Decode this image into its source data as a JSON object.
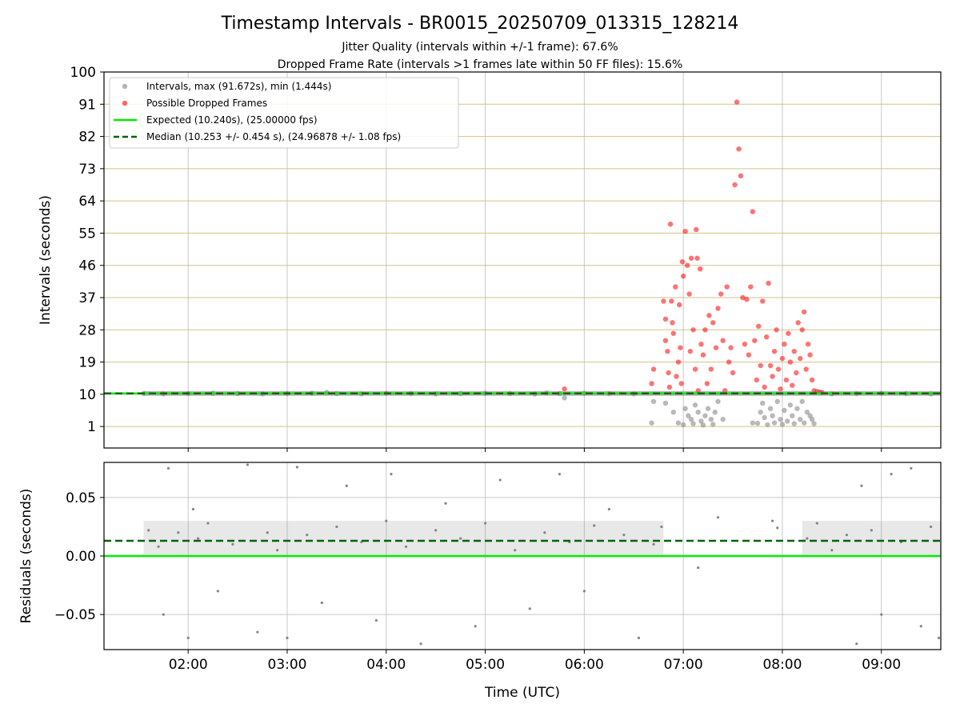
{
  "title": "Timestamp Intervals - BR0015_20250709_013315_128214",
  "subtitles": [
    "Jitter Quality (intervals within +/-1 frame): 67.6%",
    "Dropped Frame Rate (intervals >1 frames late within 50 FF files): 15.6%"
  ],
  "colors": {
    "intervals": "#808080",
    "dropped": "#ff0000",
    "expected": "#00ee00",
    "median": "#006400",
    "hgrid_top": "#d2c38a",
    "grid": "#c8c8c8"
  },
  "chart_data": [
    {
      "type": "scatter",
      "ylabel": "Intervals (seconds)",
      "xlabel": "",
      "xlim_hours": [
        1.15,
        9.6
      ],
      "ylim": [
        -5,
        100
      ],
      "yticks": [
        "1",
        "10",
        "19",
        "28",
        "37",
        "46",
        "55",
        "64",
        "73",
        "82",
        "91",
        "100"
      ],
      "xticks": [
        "02:00",
        "03:00",
        "04:00",
        "05:00",
        "06:00",
        "07:00",
        "08:00",
        "09:00"
      ],
      "legend": {
        "placement": "upper-left",
        "entries": [
          {
            "label": "Intervals, max (91.672s), min (1.444s)",
            "kind": "marker",
            "color": "#808080"
          },
          {
            "label": "Possible Dropped Frames",
            "kind": "marker",
            "color": "#ff0000"
          },
          {
            "label": "Expected (10.240s), (25.00000 fps)",
            "kind": "solid",
            "color": "#00ee00"
          },
          {
            "label": "Median (10.253 +/- 0.454 s), (24.96878 +/- 1.08 fps)",
            "kind": "dashed",
            "color": "#006400"
          }
        ]
      },
      "expected": 10.24,
      "median": 10.253,
      "series": [
        {
          "name": "Intervals, max (91.672s), min (1.444s)",
          "note": "dense band at ~10.24 s from 01:33 to 09:36; scattered low values 07:00-08:25",
          "points": [
            [
              1.55,
              10.2
            ],
            [
              1.75,
              10.1
            ],
            [
              2.0,
              10.2
            ],
            [
              2.25,
              10.3
            ],
            [
              2.5,
              10.2
            ],
            [
              2.75,
              10.1
            ],
            [
              3.0,
              10.2
            ],
            [
              3.25,
              10.3
            ],
            [
              3.4,
              10.5
            ],
            [
              3.5,
              10.2
            ],
            [
              3.75,
              10.1
            ],
            [
              4.0,
              10.3
            ],
            [
              4.25,
              10.2
            ],
            [
              4.5,
              10.1
            ],
            [
              4.75,
              10.2
            ],
            [
              5.0,
              10.3
            ],
            [
              5.25,
              10.2
            ],
            [
              5.5,
              10.1
            ],
            [
              5.62,
              10.4
            ],
            [
              5.8,
              9.0
            ],
            [
              5.75,
              10.2
            ],
            [
              6.0,
              10.3
            ],
            [
              6.25,
              10.2
            ],
            [
              6.5,
              10.1
            ],
            [
              6.68,
              2.0
            ],
            [
              6.7,
              8.0
            ],
            [
              6.82,
              7.5
            ],
            [
              6.9,
              5.0
            ],
            [
              6.95,
              2.0
            ],
            [
              7.0,
              1.5
            ],
            [
              7.02,
              6.0
            ],
            [
              7.05,
              4.0
            ],
            [
              7.08,
              3.0
            ],
            [
              7.1,
              1.8
            ],
            [
              7.12,
              7.0
            ],
            [
              7.15,
              5.0
            ],
            [
              7.18,
              2.5
            ],
            [
              7.2,
              1.4
            ],
            [
              7.22,
              4.0
            ],
            [
              7.25,
              6.0
            ],
            [
              7.28,
              3.0
            ],
            [
              7.3,
              1.6
            ],
            [
              7.32,
              5.0
            ],
            [
              7.35,
              8.0
            ],
            [
              7.4,
              3.0
            ],
            [
              7.7,
              2.0
            ],
            [
              7.75,
              1.9
            ],
            [
              7.78,
              5.0
            ],
            [
              7.8,
              7.5
            ],
            [
              7.82,
              3.5
            ],
            [
              7.85,
              1.5
            ],
            [
              7.88,
              6.0
            ],
            [
              7.9,
              4.0
            ],
            [
              7.92,
              2.0
            ],
            [
              7.95,
              8.0
            ],
            [
              7.98,
              3.0
            ],
            [
              8.0,
              1.6
            ],
            [
              8.02,
              5.5
            ],
            [
              8.05,
              2.5
            ],
            [
              8.08,
              7.0
            ],
            [
              8.1,
              4.0
            ],
            [
              8.12,
              1.8
            ],
            [
              8.15,
              6.0
            ],
            [
              8.18,
              3.0
            ],
            [
              8.2,
              8.0
            ],
            [
              8.22,
              2.0
            ],
            [
              8.25,
              5.0
            ],
            [
              8.28,
              4.0
            ],
            [
              8.3,
              3.0
            ],
            [
              8.32,
              1.8
            ],
            [
              8.5,
              10.1
            ],
            [
              8.75,
              10.2
            ],
            [
              9.0,
              10.3
            ],
            [
              9.25,
              10.2
            ],
            [
              9.5,
              10.1
            ]
          ]
        },
        {
          "name": "Possible Dropped Frames",
          "points": [
            [
              5.8,
              11.5
            ],
            [
              6.68,
              13.0
            ],
            [
              6.7,
              17.0
            ],
            [
              6.8,
              36.0
            ],
            [
              6.82,
              31.0
            ],
            [
              6.82,
              25.0
            ],
            [
              6.84,
              22.0
            ],
            [
              6.85,
              16.0
            ],
            [
              6.86,
              12.0
            ],
            [
              6.87,
              57.5
            ],
            [
              6.88,
              36.0
            ],
            [
              6.89,
              30.0
            ],
            [
              6.9,
              27.0
            ],
            [
              6.92,
              40.0
            ],
            [
              6.93,
              15.0
            ],
            [
              6.95,
              19.0
            ],
            [
              6.96,
              35.0
            ],
            [
              6.97,
              23.0
            ],
            [
              6.98,
              13.0
            ],
            [
              6.99,
              47.0
            ],
            [
              7.0,
              43.0
            ],
            [
              7.02,
              55.5
            ],
            [
              7.04,
              46.0
            ],
            [
              7.06,
              38.0
            ],
            [
              7.07,
              22.0
            ],
            [
              7.08,
              48.0
            ],
            [
              7.1,
              28.0
            ],
            [
              7.12,
              17.0
            ],
            [
              7.13,
              56.0
            ],
            [
              7.14,
              48.0
            ],
            [
              7.15,
              11.0
            ],
            [
              7.17,
              45.0
            ],
            [
              7.18,
              24.0
            ],
            [
              7.2,
              21.0
            ],
            [
              7.22,
              28.0
            ],
            [
              7.24,
              13.0
            ],
            [
              7.26,
              32.0
            ],
            [
              7.28,
              17.0
            ],
            [
              7.3,
              30.0
            ],
            [
              7.33,
              23.0
            ],
            [
              7.35,
              34.0
            ],
            [
              7.38,
              38.0
            ],
            [
              7.4,
              25.0
            ],
            [
              7.42,
              11.0
            ],
            [
              7.44,
              40.0
            ],
            [
              7.46,
              19.0
            ],
            [
              7.48,
              23.0
            ],
            [
              7.5,
              16.0
            ],
            [
              7.52,
              68.5
            ],
            [
              7.54,
              91.6
            ],
            [
              7.56,
              78.5
            ],
            [
              7.58,
              71.0
            ],
            [
              7.6,
              37.0
            ],
            [
              7.62,
              24.0
            ],
            [
              7.64,
              36.5
            ],
            [
              7.66,
              21.0
            ],
            [
              7.68,
              40.0
            ],
            [
              7.7,
              61.0
            ],
            [
              7.72,
              25.0
            ],
            [
              7.74,
              14.0
            ],
            [
              7.76,
              29.0
            ],
            [
              7.78,
              18.0
            ],
            [
              7.8,
              36.0
            ],
            [
              7.82,
              12.0
            ],
            [
              7.84,
              26.0
            ],
            [
              7.86,
              41.0
            ],
            [
              7.88,
              18.0
            ],
            [
              7.9,
              15.0
            ],
            [
              7.92,
              22.0
            ],
            [
              7.94,
              28.0
            ],
            [
              7.96,
              17.0
            ],
            [
              7.98,
              11.5
            ],
            [
              8.0,
              20.0
            ],
            [
              8.02,
              24.0
            ],
            [
              8.04,
              14.0
            ],
            [
              8.06,
              27.0
            ],
            [
              8.08,
              19.0
            ],
            [
              8.1,
              12.5
            ],
            [
              8.12,
              22.0
            ],
            [
              8.14,
              16.0
            ],
            [
              8.16,
              30.0
            ],
            [
              8.18,
              20.0
            ],
            [
              8.2,
              28.0
            ],
            [
              8.22,
              33.0
            ],
            [
              8.24,
              17.0
            ],
            [
              8.26,
              24.0
            ],
            [
              8.28,
              21.0
            ],
            [
              8.3,
              14.0
            ],
            [
              8.32,
              11.0
            ],
            [
              8.35,
              10.8
            ],
            [
              8.38,
              10.6
            ],
            [
              8.4,
              10.5
            ]
          ]
        }
      ]
    },
    {
      "type": "scatter",
      "ylabel": "Residuals (seconds)",
      "xlabel": "Time (UTC)",
      "xlim_hours": [
        1.15,
        9.6
      ],
      "ylim": [
        -0.08,
        0.08
      ],
      "yticks": [
        "−0.05",
        "0.00",
        "0.05"
      ],
      "xticks": [
        "02:00",
        "03:00",
        "04:00",
        "05:00",
        "06:00",
        "07:00",
        "08:00",
        "09:00"
      ],
      "expected": 0.0,
      "median": 0.013,
      "series": [
        {
          "name": "Residuals",
          "note": "band between 0.00 and 0.03 s from 01:33 to 06:47 and 08:13 to 09:36, with outliers",
          "points": [
            [
              1.6,
              0.022
            ],
            [
              1.7,
              0.008
            ],
            [
              1.75,
              -0.05
            ],
            [
              1.8,
              0.075
            ],
            [
              1.9,
              0.02
            ],
            [
              2.0,
              -0.07
            ],
            [
              2.05,
              0.04
            ],
            [
              2.1,
              0.015
            ],
            [
              2.2,
              0.028
            ],
            [
              2.3,
              -0.03
            ],
            [
              2.45,
              0.01
            ],
            [
              2.6,
              0.078
            ],
            [
              2.7,
              -0.065
            ],
            [
              2.8,
              0.02
            ],
            [
              2.9,
              0.005
            ],
            [
              3.0,
              -0.07
            ],
            [
              3.1,
              0.076
            ],
            [
              3.2,
              0.018
            ],
            [
              3.35,
              -0.04
            ],
            [
              3.5,
              0.025
            ],
            [
              3.6,
              0.06
            ],
            [
              3.75,
              0.012
            ],
            [
              3.9,
              -0.055
            ],
            [
              4.0,
              0.03
            ],
            [
              4.05,
              0.07
            ],
            [
              4.2,
              0.008
            ],
            [
              4.35,
              -0.075
            ],
            [
              4.5,
              0.022
            ],
            [
              4.6,
              0.045
            ],
            [
              4.75,
              0.015
            ],
            [
              4.9,
              -0.06
            ],
            [
              5.0,
              0.028
            ],
            [
              5.15,
              0.065
            ],
            [
              5.3,
              0.005
            ],
            [
              5.45,
              -0.045
            ],
            [
              5.6,
              0.02
            ],
            [
              5.75,
              0.07
            ],
            [
              5.85,
              0.012
            ],
            [
              6.0,
              -0.03
            ],
            [
              6.1,
              0.026
            ],
            [
              6.25,
              0.04
            ],
            [
              6.4,
              0.018
            ],
            [
              6.55,
              -0.07
            ],
            [
              6.7,
              0.01
            ],
            [
              6.78,
              0.025
            ],
            [
              7.15,
              -0.01
            ],
            [
              7.35,
              0.033
            ],
            [
              7.9,
              0.03
            ],
            [
              7.95,
              0.024
            ],
            [
              8.25,
              0.015
            ],
            [
              8.35,
              0.028
            ],
            [
              8.5,
              0.005
            ],
            [
              8.65,
              0.018
            ],
            [
              8.75,
              -0.075
            ],
            [
              8.8,
              0.06
            ],
            [
              8.9,
              0.022
            ],
            [
              9.0,
              -0.05
            ],
            [
              9.1,
              0.07
            ],
            [
              9.2,
              0.012
            ],
            [
              9.3,
              0.075
            ],
            [
              9.4,
              -0.06
            ],
            [
              9.5,
              0.025
            ],
            [
              9.58,
              -0.07
            ]
          ]
        }
      ]
    }
  ]
}
